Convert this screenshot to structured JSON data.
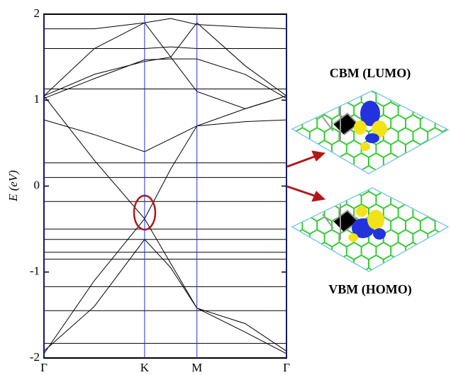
{
  "chart_data": {
    "type": "line",
    "ylabel": "E (eV)",
    "x": [
      0,
      0.5,
      1,
      1.26,
      1.52,
      2,
      2.41
    ],
    "xlim": [
      0,
      2.41
    ],
    "xticks": [
      {
        "value": 0,
        "label": "Γ"
      },
      {
        "value": 1,
        "label": "K"
      },
      {
        "value": 1.52,
        "label": "M"
      },
      {
        "value": 2.41,
        "label": "Γ"
      }
    ],
    "ylim": [
      -2,
      2
    ],
    "yticks": [
      2,
      1,
      0,
      -1,
      -2
    ],
    "line_color": "#000000",
    "symmetry_line_color": "#2233cc",
    "series": [
      {
        "values": [
          1.05,
          0.3,
          -0.38,
          0.2,
          0.7,
          0.9,
          1.05
        ]
      },
      {
        "values": [
          -1.95,
          -1.1,
          -0.38,
          -0.9,
          -1.42,
          -1.7,
          -1.95
        ]
      },
      {
        "values": [
          1.05,
          1.3,
          1.45,
          1.5,
          1.9,
          1.4,
          1.05
        ]
      },
      {
        "values": [
          1.05,
          1.6,
          1.9,
          1.5,
          1.1,
          0.9,
          1.05
        ]
      },
      {
        "values": [
          1.02,
          1.25,
          1.47,
          1.48,
          1.48,
          1.3,
          1.02
        ]
      },
      {
        "values": [
          -1.92,
          -1.4,
          -0.62,
          -0.95,
          -1.42,
          -1.6,
          -1.92
        ]
      },
      {
        "values": [
          1.83,
          1.83,
          1.9,
          1.95,
          1.88,
          1.85,
          1.83
        ]
      },
      {
        "values": [
          1.6,
          1.6,
          1.6,
          1.62,
          1.6,
          1.6,
          1.6
        ]
      },
      {
        "values": [
          1.13,
          1.13,
          1.13,
          1.13,
          1.13,
          1.13,
          1.13
        ]
      },
      {
        "values": [
          0.77,
          0.6,
          0.4,
          0.55,
          0.7,
          0.75,
          0.77
        ]
      },
      {
        "values": [
          0.27,
          0.27,
          0.27,
          0.27,
          0.27,
          0.27,
          0.27
        ]
      },
      {
        "values": [
          0.1,
          0.1,
          0.1,
          0.1,
          0.1,
          0.1,
          0.1
        ]
      },
      {
        "values": [
          -0.18,
          -0.18,
          -0.18,
          -0.18,
          -0.18,
          -0.18,
          -0.18
        ]
      },
      {
        "values": [
          -0.5,
          -0.5,
          -0.5,
          -0.5,
          -0.5,
          -0.5,
          -0.5
        ]
      },
      {
        "values": [
          -0.62,
          -0.62,
          -0.62,
          -0.62,
          -0.62,
          -0.62,
          -0.62
        ]
      },
      {
        "values": [
          -0.77,
          -0.77,
          -0.77,
          -0.77,
          -0.77,
          -0.77,
          -0.77
        ]
      },
      {
        "values": [
          -0.85,
          -0.85,
          -0.85,
          -0.85,
          -0.85,
          -0.85,
          -0.85
        ]
      },
      {
        "values": [
          -1.17,
          -1.17,
          -1.17,
          -1.17,
          -1.17,
          -1.17,
          -1.17
        ]
      },
      {
        "values": [
          -1.45,
          -1.45,
          -1.45,
          -1.45,
          -1.45,
          -1.45,
          -1.45
        ]
      },
      {
        "values": [
          -1.83,
          -1.83,
          -1.83,
          -1.83,
          -1.83,
          -1.83,
          -1.83
        ]
      }
    ]
  },
  "annotations": {
    "cbm": "CBM (LUMO)",
    "vbm": "VBM (HOMO)"
  }
}
